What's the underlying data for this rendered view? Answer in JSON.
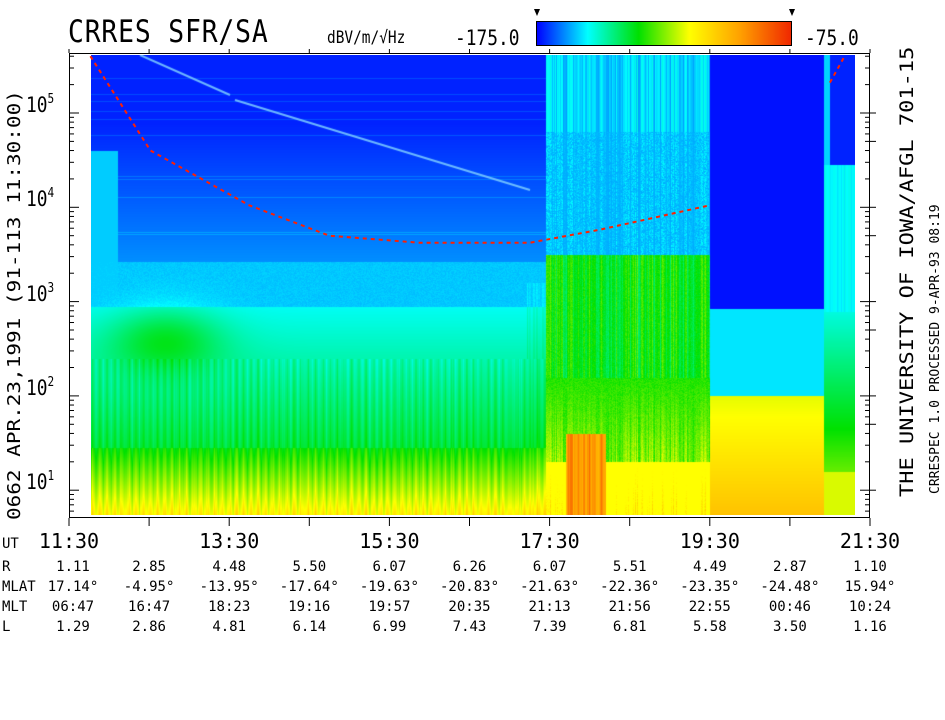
{
  "header": {
    "title": "CRRES SFR/SA",
    "units": "dBV/m/√Hz",
    "colorbar_min_label": "-175.0",
    "colorbar_max_label": "-75.0"
  },
  "left_label": "0662  APR.23,1991  (91-113 11:30:00)",
  "right_label_main": "THE UNIVERSITY OF IOWA/AFGL 701-15",
  "right_label_sub": "CRRESPEC 1.0   PROCESSED  9-APR-93  08:19",
  "chart_data": {
    "type": "heatmap",
    "title": "CRRES SFR/SA",
    "colorbar": {
      "label": "dBV/m/√Hz",
      "range": [
        -175.0,
        -75.0
      ],
      "colors": [
        "#0000ff",
        "#00ffff",
        "#00e000",
        "#ffff00",
        "#ffa000",
        "#f02800"
      ]
    },
    "x_axis": {
      "label": "UT",
      "range": [
        "11:30",
        "21:30"
      ],
      "tick_labels": [
        "11:30",
        "13:30",
        "15:30",
        "17:30",
        "19:30",
        "21:30"
      ],
      "minor_ticks": [
        "12:30",
        "14:30",
        "16:30",
        "18:30",
        "20:30"
      ]
    },
    "y_axis": {
      "scale": "log",
      "unit": "Hz",
      "range": [
        5.4,
        400000
      ],
      "tick_labels": [
        {
          "base": "10",
          "exp": "1"
        },
        {
          "base": "10",
          "exp": "2"
        },
        {
          "base": "10",
          "exp": "3"
        },
        {
          "base": "10",
          "exp": "4"
        },
        {
          "base": "10",
          "exp": "5"
        }
      ]
    },
    "data_extent": {
      "start": "11:46",
      "end": "21:19"
    },
    "regions": [
      {
        "from": "11:46",
        "to": "17:26",
        "description_level": "low above 3e3 Hz (~-170 dB), moderate below (~-140 to -120 dB), high near 10 Hz (~-100 dB)"
      },
      {
        "from": "17:26",
        "to": "19:30",
        "description_level": "broadband enhancement, peaks ~-80 dB below 100 Hz"
      },
      {
        "from": "19:30",
        "to": "20:55",
        "description_level": "fill blocks: >850 Hz ~-173, 100-850 Hz ~-148, <100 Hz ~-100 dB"
      }
    ],
    "overlay_curve": {
      "style": "red dashed",
      "points": [
        [
          "11:46",
          400000
        ],
        [
          "12:31",
          40000
        ],
        [
          "13:45",
          10500
        ],
        [
          "14:45",
          5000
        ],
        [
          "15:53",
          4200
        ],
        [
          "17:15",
          4200
        ],
        [
          "18:08",
          5800
        ],
        [
          "19:30",
          10500
        ]
      ],
      "points_late": [
        [
          "21:00",
          210000
        ],
        [
          "21:11",
          400000
        ]
      ]
    },
    "grid": false
  },
  "ephemeris": {
    "row_labels": [
      "R",
      "MLAT",
      "MLT",
      "L"
    ],
    "ut_label": "UT",
    "R": [
      "1.11",
      "2.85",
      "4.48",
      "5.50",
      "6.07",
      "6.26",
      "6.07",
      "5.51",
      "4.49",
      "2.87",
      "1.10"
    ],
    "MLAT": [
      "17.14°",
      "-4.95°",
      "-13.95°",
      "-17.64°",
      "-19.63°",
      "-20.83°",
      "-21.63°",
      "-22.36°",
      "-23.35°",
      "-24.48°",
      "15.94°"
    ],
    "MLT": [
      "06:47",
      "16:47",
      "18:23",
      "19:16",
      "19:57",
      "20:35",
      "21:13",
      "21:56",
      "22:55",
      "00:46",
      "10:24"
    ],
    "L": [
      "1.29",
      "2.86",
      "4.81",
      "6.14",
      "6.99",
      "7.43",
      "7.39",
      "6.81",
      "5.58",
      "3.50",
      "1.16"
    ]
  }
}
